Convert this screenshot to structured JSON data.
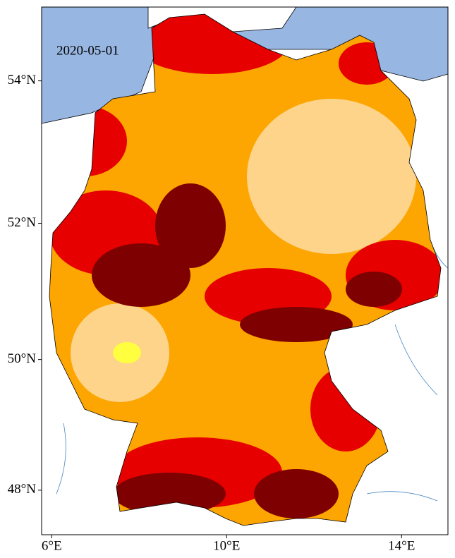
{
  "chart_data": {
    "type": "map",
    "annotation": "2020-05-01",
    "xlim": [
      5.77,
      15.06
    ],
    "ylim": [
      47.3,
      55.0
    ],
    "xticks": [
      {
        "value": 6,
        "label": "6°E"
      },
      {
        "value": 10,
        "label": "10°E"
      },
      {
        "value": 14,
        "label": "14°E"
      }
    ],
    "yticks": [
      {
        "value": 48,
        "label": "48°N"
      },
      {
        "value": 50,
        "label": "50°N"
      },
      {
        "value": 52,
        "label": "52°N"
      },
      {
        "value": 54,
        "label": "54°N"
      }
    ]
  }
}
